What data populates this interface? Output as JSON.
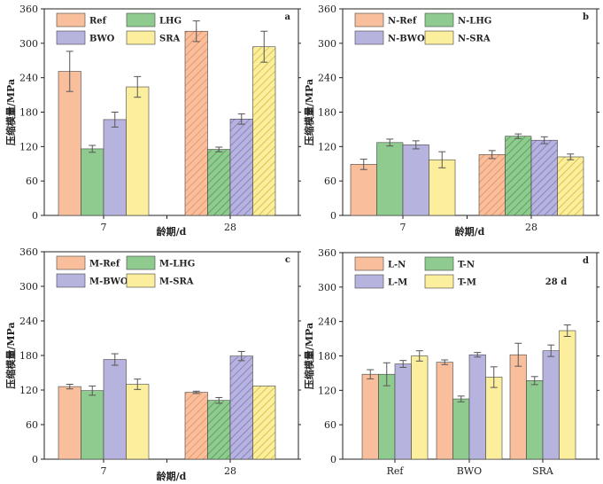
{
  "colors": {
    "orange": "#f9bf9d",
    "green": "#8fcb8f",
    "purple": "#b7b3df",
    "yellow": "#fbee9c",
    "orange_hatch": "#e78b5c",
    "green_hatch": "#4f9a4f",
    "purple_hatch": "#7e76bb",
    "yellow_hatch": "#d4b93b"
  },
  "chart_data": [
    {
      "type": "bar",
      "letter": "a",
      "note": "",
      "ylabel": "压缩模量/MPa",
      "xlabel": "龄期/d",
      "ylim": [
        0,
        360
      ],
      "yticks": [
        0,
        60,
        120,
        180,
        240,
        300,
        360
      ],
      "categories": [
        "7",
        "28"
      ],
      "hatched_categories": [
        1
      ],
      "legend": [
        "Ref",
        "LHG",
        "BWO",
        "SRA"
      ],
      "series": [
        {
          "name": "Ref",
          "color": "orange",
          "values": [
            251,
            321
          ],
          "errors": [
            35,
            18
          ]
        },
        {
          "name": "LHG",
          "color": "green",
          "values": [
            116,
            115
          ],
          "errors": [
            6,
            4
          ]
        },
        {
          "name": "BWO",
          "color": "purple",
          "values": [
            167,
            168
          ],
          "errors": [
            13,
            9
          ]
        },
        {
          "name": "SRA",
          "color": "yellow",
          "values": [
            224,
            294
          ],
          "errors": [
            18,
            27
          ]
        }
      ]
    },
    {
      "type": "bar",
      "letter": "b",
      "note": "",
      "ylabel": "压缩模量/MPa",
      "xlabel": "龄期/d",
      "ylim": [
        0,
        360
      ],
      "yticks": [
        0,
        60,
        120,
        180,
        240,
        300,
        360
      ],
      "categories": [
        "7",
        "28"
      ],
      "hatched_categories": [
        1
      ],
      "legend": [
        "N-Ref",
        "N-LHG",
        "N-BWO",
        "N-SRA"
      ],
      "series": [
        {
          "name": "N-Ref",
          "color": "orange",
          "values": [
            89,
            106
          ],
          "errors": [
            9,
            7
          ]
        },
        {
          "name": "N-LHG",
          "color": "green",
          "values": [
            127,
            138
          ],
          "errors": [
            6,
            4
          ]
        },
        {
          "name": "N-BWO",
          "color": "purple",
          "values": [
            123,
            131
          ],
          "errors": [
            7,
            6
          ]
        },
        {
          "name": "N-SRA",
          "color": "yellow",
          "values": [
            97,
            102
          ],
          "errors": [
            14,
            5
          ]
        }
      ]
    },
    {
      "type": "bar",
      "letter": "c",
      "note": "",
      "ylabel": "压缩模量/MPa",
      "xlabel": "龄期/d",
      "ylim": [
        0,
        360
      ],
      "yticks": [
        0,
        60,
        120,
        180,
        240,
        300,
        360
      ],
      "categories": [
        "7",
        "28"
      ],
      "hatched_categories": [
        1
      ],
      "legend": [
        "M-Ref",
        "M-LHG",
        "M-BWO",
        "M-SRA"
      ],
      "series": [
        {
          "name": "M-Ref",
          "color": "orange",
          "values": [
            126,
            116
          ],
          "errors": [
            4,
            2
          ]
        },
        {
          "name": "M-LHG",
          "color": "green",
          "values": [
            119,
            102
          ],
          "errors": [
            8,
            5
          ]
        },
        {
          "name": "M-BWO",
          "color": "purple",
          "values": [
            173,
            179
          ],
          "errors": [
            10,
            8
          ]
        },
        {
          "name": "M-SRA",
          "color": "yellow",
          "values": [
            130,
            127
          ],
          "errors": [
            9,
            0
          ]
        }
      ]
    },
    {
      "type": "bar",
      "letter": "d",
      "note": "28 d",
      "ylabel": "压缩模量/MPa",
      "xlabel": "",
      "ylim": [
        0,
        360
      ],
      "yticks": [
        0,
        60,
        120,
        180,
        240,
        300,
        360
      ],
      "categories": [
        "Ref",
        "BWO",
        "SRA"
      ],
      "hatched_categories": [],
      "legend": [
        "L-N",
        "T-N",
        "L-M",
        "T-M"
      ],
      "series": [
        {
          "name": "L-N",
          "color": "orange",
          "values": [
            148,
            169,
            182
          ],
          "errors": [
            8,
            4,
            20
          ]
        },
        {
          "name": "T-N",
          "color": "green",
          "values": [
            148,
            105,
            137
          ],
          "errors": [
            20,
            5,
            7
          ]
        },
        {
          "name": "L-M",
          "color": "purple",
          "values": [
            166,
            182,
            189
          ],
          "errors": [
            6,
            4,
            10
          ]
        },
        {
          "name": "T-M",
          "color": "yellow",
          "values": [
            180,
            143,
            224
          ],
          "errors": [
            9,
            18,
            10
          ]
        }
      ]
    }
  ]
}
